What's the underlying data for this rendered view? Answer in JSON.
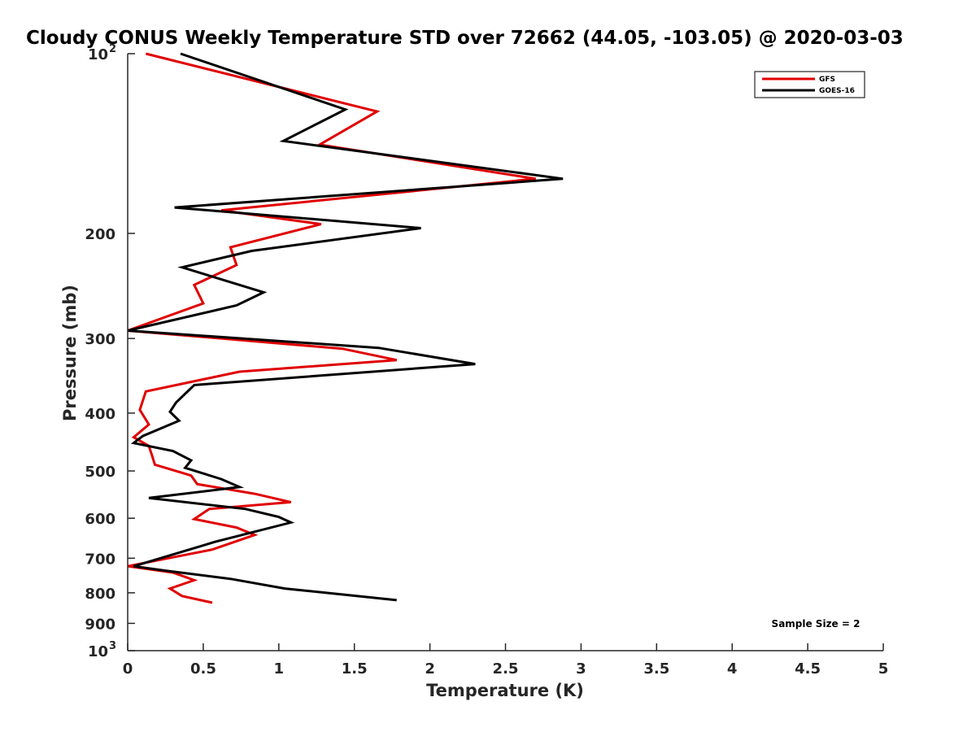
{
  "chart_data": {
    "type": "line",
    "title": "Cloudy CONUS Weekly Temperature STD over 72662 (44.05, -103.05) @ 2020-03-03",
    "xlabel": "Temperature (K)",
    "ylabel": "Pressure (mb)",
    "xlim": [
      0,
      5
    ],
    "ylim": [
      100,
      1000
    ],
    "y_scale": "log",
    "y_reversed": true,
    "x_ticks": [
      "0",
      "0.5",
      "1",
      "1.5",
      "2",
      "2.5",
      "3",
      "3.5",
      "4",
      "4.5",
      "5"
    ],
    "y_ticks": [
      {
        "value": 100,
        "base": "10",
        "exp": "2"
      },
      {
        "value": 200,
        "label": "200"
      },
      {
        "value": 300,
        "label": "300"
      },
      {
        "value": 400,
        "label": "400"
      },
      {
        "value": 500,
        "label": "500"
      },
      {
        "value": 600,
        "label": "600"
      },
      {
        "value": 700,
        "label": "700"
      },
      {
        "value": 800,
        "label": "800"
      },
      {
        "value": 900,
        "label": "900"
      },
      {
        "value": 1000,
        "base": "10",
        "exp": "3"
      }
    ],
    "grid": false,
    "legend_position": "top-right",
    "annotation": "Sample Size = 2",
    "series": [
      {
        "name": "GFS",
        "color": "#e00000",
        "points": [
          [
            0.12,
            100
          ],
          [
            1.65,
            125
          ],
          [
            1.27,
            142
          ],
          [
            2.7,
            162
          ],
          [
            0.62,
            183
          ],
          [
            1.28,
            193
          ],
          [
            0.68,
            211
          ],
          [
            0.72,
            226
          ],
          [
            0.44,
            244
          ],
          [
            0.5,
            262
          ],
          [
            0.0,
            291
          ],
          [
            1.42,
            312
          ],
          [
            1.78,
            326
          ],
          [
            0.74,
            341
          ],
          [
            0.12,
            368
          ],
          [
            0.08,
            395
          ],
          [
            0.14,
            418
          ],
          [
            0.04,
            439
          ],
          [
            0.14,
            454
          ],
          [
            0.16,
            470
          ],
          [
            0.18,
            488
          ],
          [
            0.42,
            509
          ],
          [
            0.46,
            526
          ],
          [
            0.84,
            546
          ],
          [
            1.08,
            564
          ],
          [
            0.54,
            579
          ],
          [
            0.44,
            602
          ],
          [
            0.72,
            622
          ],
          [
            0.84,
            640
          ],
          [
            0.56,
            677
          ],
          [
            0.0,
            722
          ],
          [
            0.3,
            740
          ],
          [
            0.44,
            762
          ],
          [
            0.28,
            787
          ],
          [
            0.36,
            810
          ],
          [
            0.56,
            831
          ]
        ]
      },
      {
        "name": "GOES-16",
        "color": "#000000",
        "points": [
          [
            0.35,
            100
          ],
          [
            1.44,
            124
          ],
          [
            1.03,
            140
          ],
          [
            2.88,
            162
          ],
          [
            0.31,
            181
          ],
          [
            1.94,
            196
          ],
          [
            0.82,
            214
          ],
          [
            0.36,
            228
          ],
          [
            0.9,
            251
          ],
          [
            0.72,
            264
          ],
          [
            0.0,
            291
          ],
          [
            1.66,
            311
          ],
          [
            2.3,
            331
          ],
          [
            0.44,
            359
          ],
          [
            0.32,
            384
          ],
          [
            0.28,
            398
          ],
          [
            0.34,
            412
          ],
          [
            0.1,
            437
          ],
          [
            0.04,
            449
          ],
          [
            0.3,
            463
          ],
          [
            0.42,
            480
          ],
          [
            0.38,
            494
          ],
          [
            0.62,
            516
          ],
          [
            0.74,
            532
          ],
          [
            0.14,
            555
          ],
          [
            0.78,
            579
          ],
          [
            1.0,
            597
          ],
          [
            1.08,
            610
          ],
          [
            0.58,
            657
          ],
          [
            0.04,
            722
          ],
          [
            0.26,
            735
          ],
          [
            0.68,
            758
          ],
          [
            1.04,
            787
          ],
          [
            1.78,
            823
          ]
        ]
      }
    ]
  }
}
